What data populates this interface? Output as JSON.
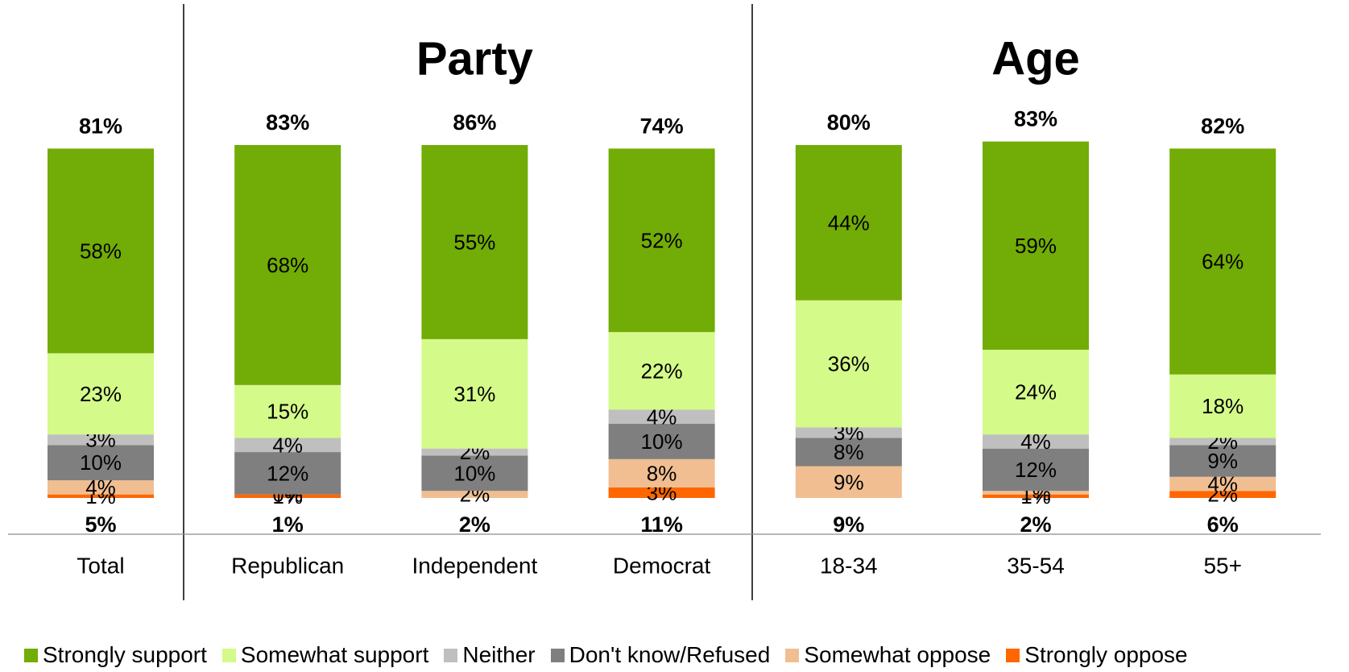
{
  "chart_data": {
    "type": "bar",
    "stacked": true,
    "group_headers": [
      {
        "label": "Party",
        "categories": [
          "Republican",
          "Independent",
          "Democrat"
        ]
      },
      {
        "label": "Age",
        "categories": [
          "18-34",
          "35-54",
          "55+"
        ]
      }
    ],
    "categories": [
      "Total",
      "Republican",
      "Independent",
      "Democrat",
      "18-34",
      "35-54",
      "55+"
    ],
    "series": [
      {
        "name": "Strongly oppose",
        "color": "#FF6600",
        "values": [
          1,
          1,
          0,
          3,
          0,
          1,
          2
        ],
        "labels": [
          "1%",
          "1%",
          "",
          "3%",
          "",
          "1%",
          "2%"
        ]
      },
      {
        "name": "Somewhat oppose",
        "color": "#F0BE91",
        "values": [
          4,
          0,
          2,
          8,
          9,
          1,
          4
        ],
        "labels": [
          "4%",
          "0%",
          "2%",
          "8%",
          "9%",
          "1%",
          "4%"
        ]
      },
      {
        "name": "Don't know/Refused",
        "color": "#7F7F7F",
        "values": [
          10,
          12,
          10,
          10,
          8,
          12,
          9
        ],
        "labels": [
          "10%",
          "12%",
          "10%",
          "10%",
          "8%",
          "12%",
          "9%"
        ]
      },
      {
        "name": "Neither",
        "color": "#BFBFBF",
        "values": [
          3,
          4,
          2,
          4,
          3,
          4,
          2
        ],
        "labels": [
          "3%",
          "4%",
          "2%",
          "4%",
          "3%",
          "4%",
          "2%"
        ]
      },
      {
        "name": "Somewhat support",
        "color": "#D4FA8A",
        "values": [
          23,
          15,
          31,
          22,
          36,
          24,
          18
        ],
        "labels": [
          "23%",
          "15%",
          "31%",
          "22%",
          "36%",
          "24%",
          "18%"
        ]
      },
      {
        "name": "Strongly support",
        "color": "#72AC06",
        "values": [
          58,
          68,
          55,
          52,
          44,
          59,
          64
        ],
        "labels": [
          "58%",
          "68%",
          "55%",
          "52%",
          "44%",
          "59%",
          "64%"
        ]
      }
    ],
    "total_support": [
      "81%",
      "83%",
      "86%",
      "74%",
      "80%",
      "83%",
      "82%"
    ],
    "total_oppose": [
      "5%",
      "1%",
      "2%",
      "11%",
      "9%",
      "2%",
      "6%"
    ],
    "legend": [
      {
        "name": "Strongly support",
        "color": "#72AC06"
      },
      {
        "name": "Somewhat support",
        "color": "#D4FA8A"
      },
      {
        "name": "Neither",
        "color": "#BFBFBF"
      },
      {
        "name": "Don't know/Refused",
        "color": "#7F7F7F"
      },
      {
        "name": "Somewhat oppose",
        "color": "#F0BE91"
      },
      {
        "name": "Strongly oppose",
        "color": "#FF6600"
      }
    ],
    "legend_position": "bottom",
    "grid": false,
    "ylim": [
      0,
      100
    ]
  }
}
